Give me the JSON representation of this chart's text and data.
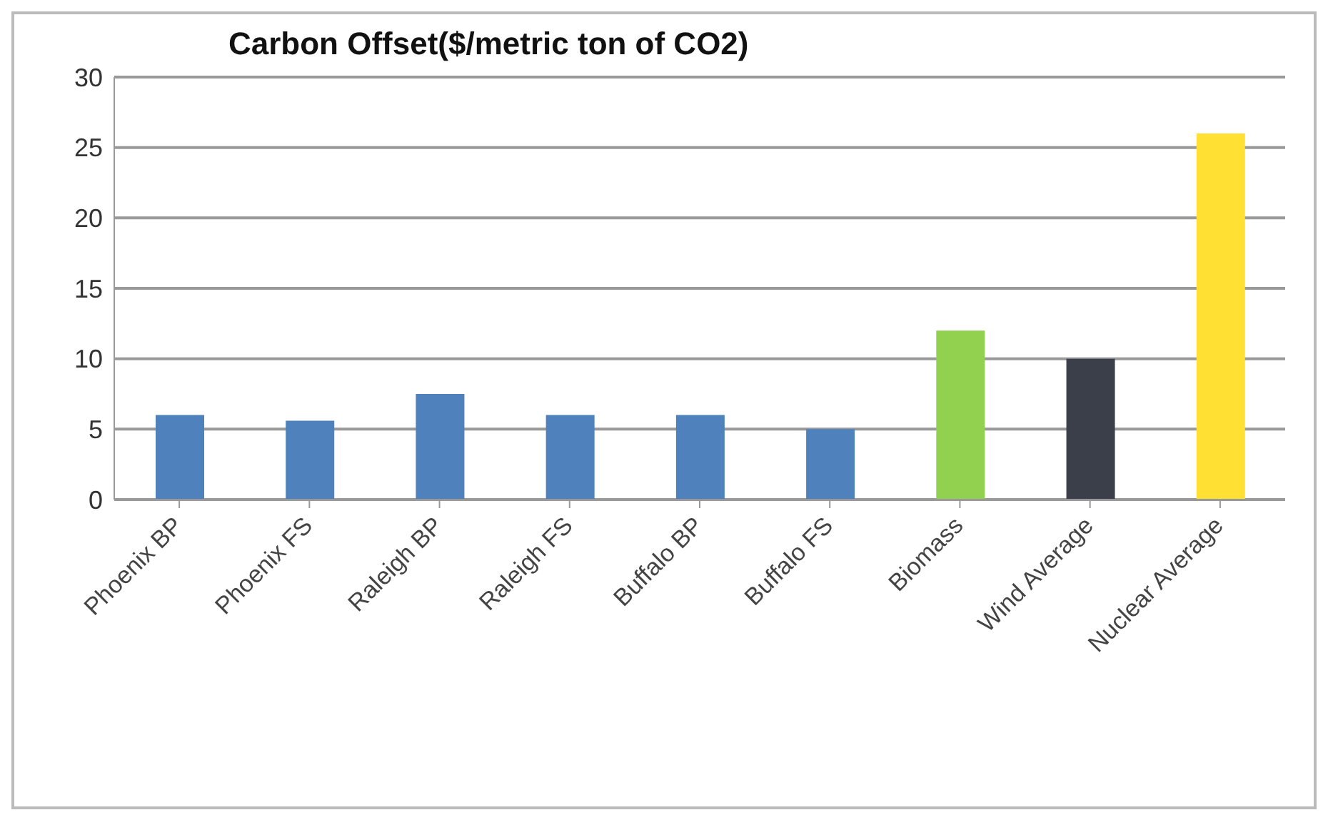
{
  "chart_data": {
    "type": "bar",
    "title": "Carbon Offset($/metric ton of CO2)",
    "categories": [
      "Phoenix BP",
      "Phoenix FS",
      "Raleigh BP",
      "Raleigh FS",
      "Buffalo BP",
      "Buffalo FS",
      "Biomass",
      "Wind Average",
      "Nuclear Average"
    ],
    "values": [
      6,
      5.6,
      7.5,
      6,
      6,
      5,
      12,
      10,
      26
    ],
    "colors": [
      "#4f81bd",
      "#4f81bd",
      "#4f81bd",
      "#4f81bd",
      "#4f81bd",
      "#4f81bd",
      "#92d050",
      "#3b3f4a",
      "#ffe033"
    ],
    "ylim": [
      0,
      30
    ],
    "yticks": [
      0,
      5,
      10,
      15,
      20,
      25,
      30
    ],
    "grid": "y",
    "legend": false
  }
}
